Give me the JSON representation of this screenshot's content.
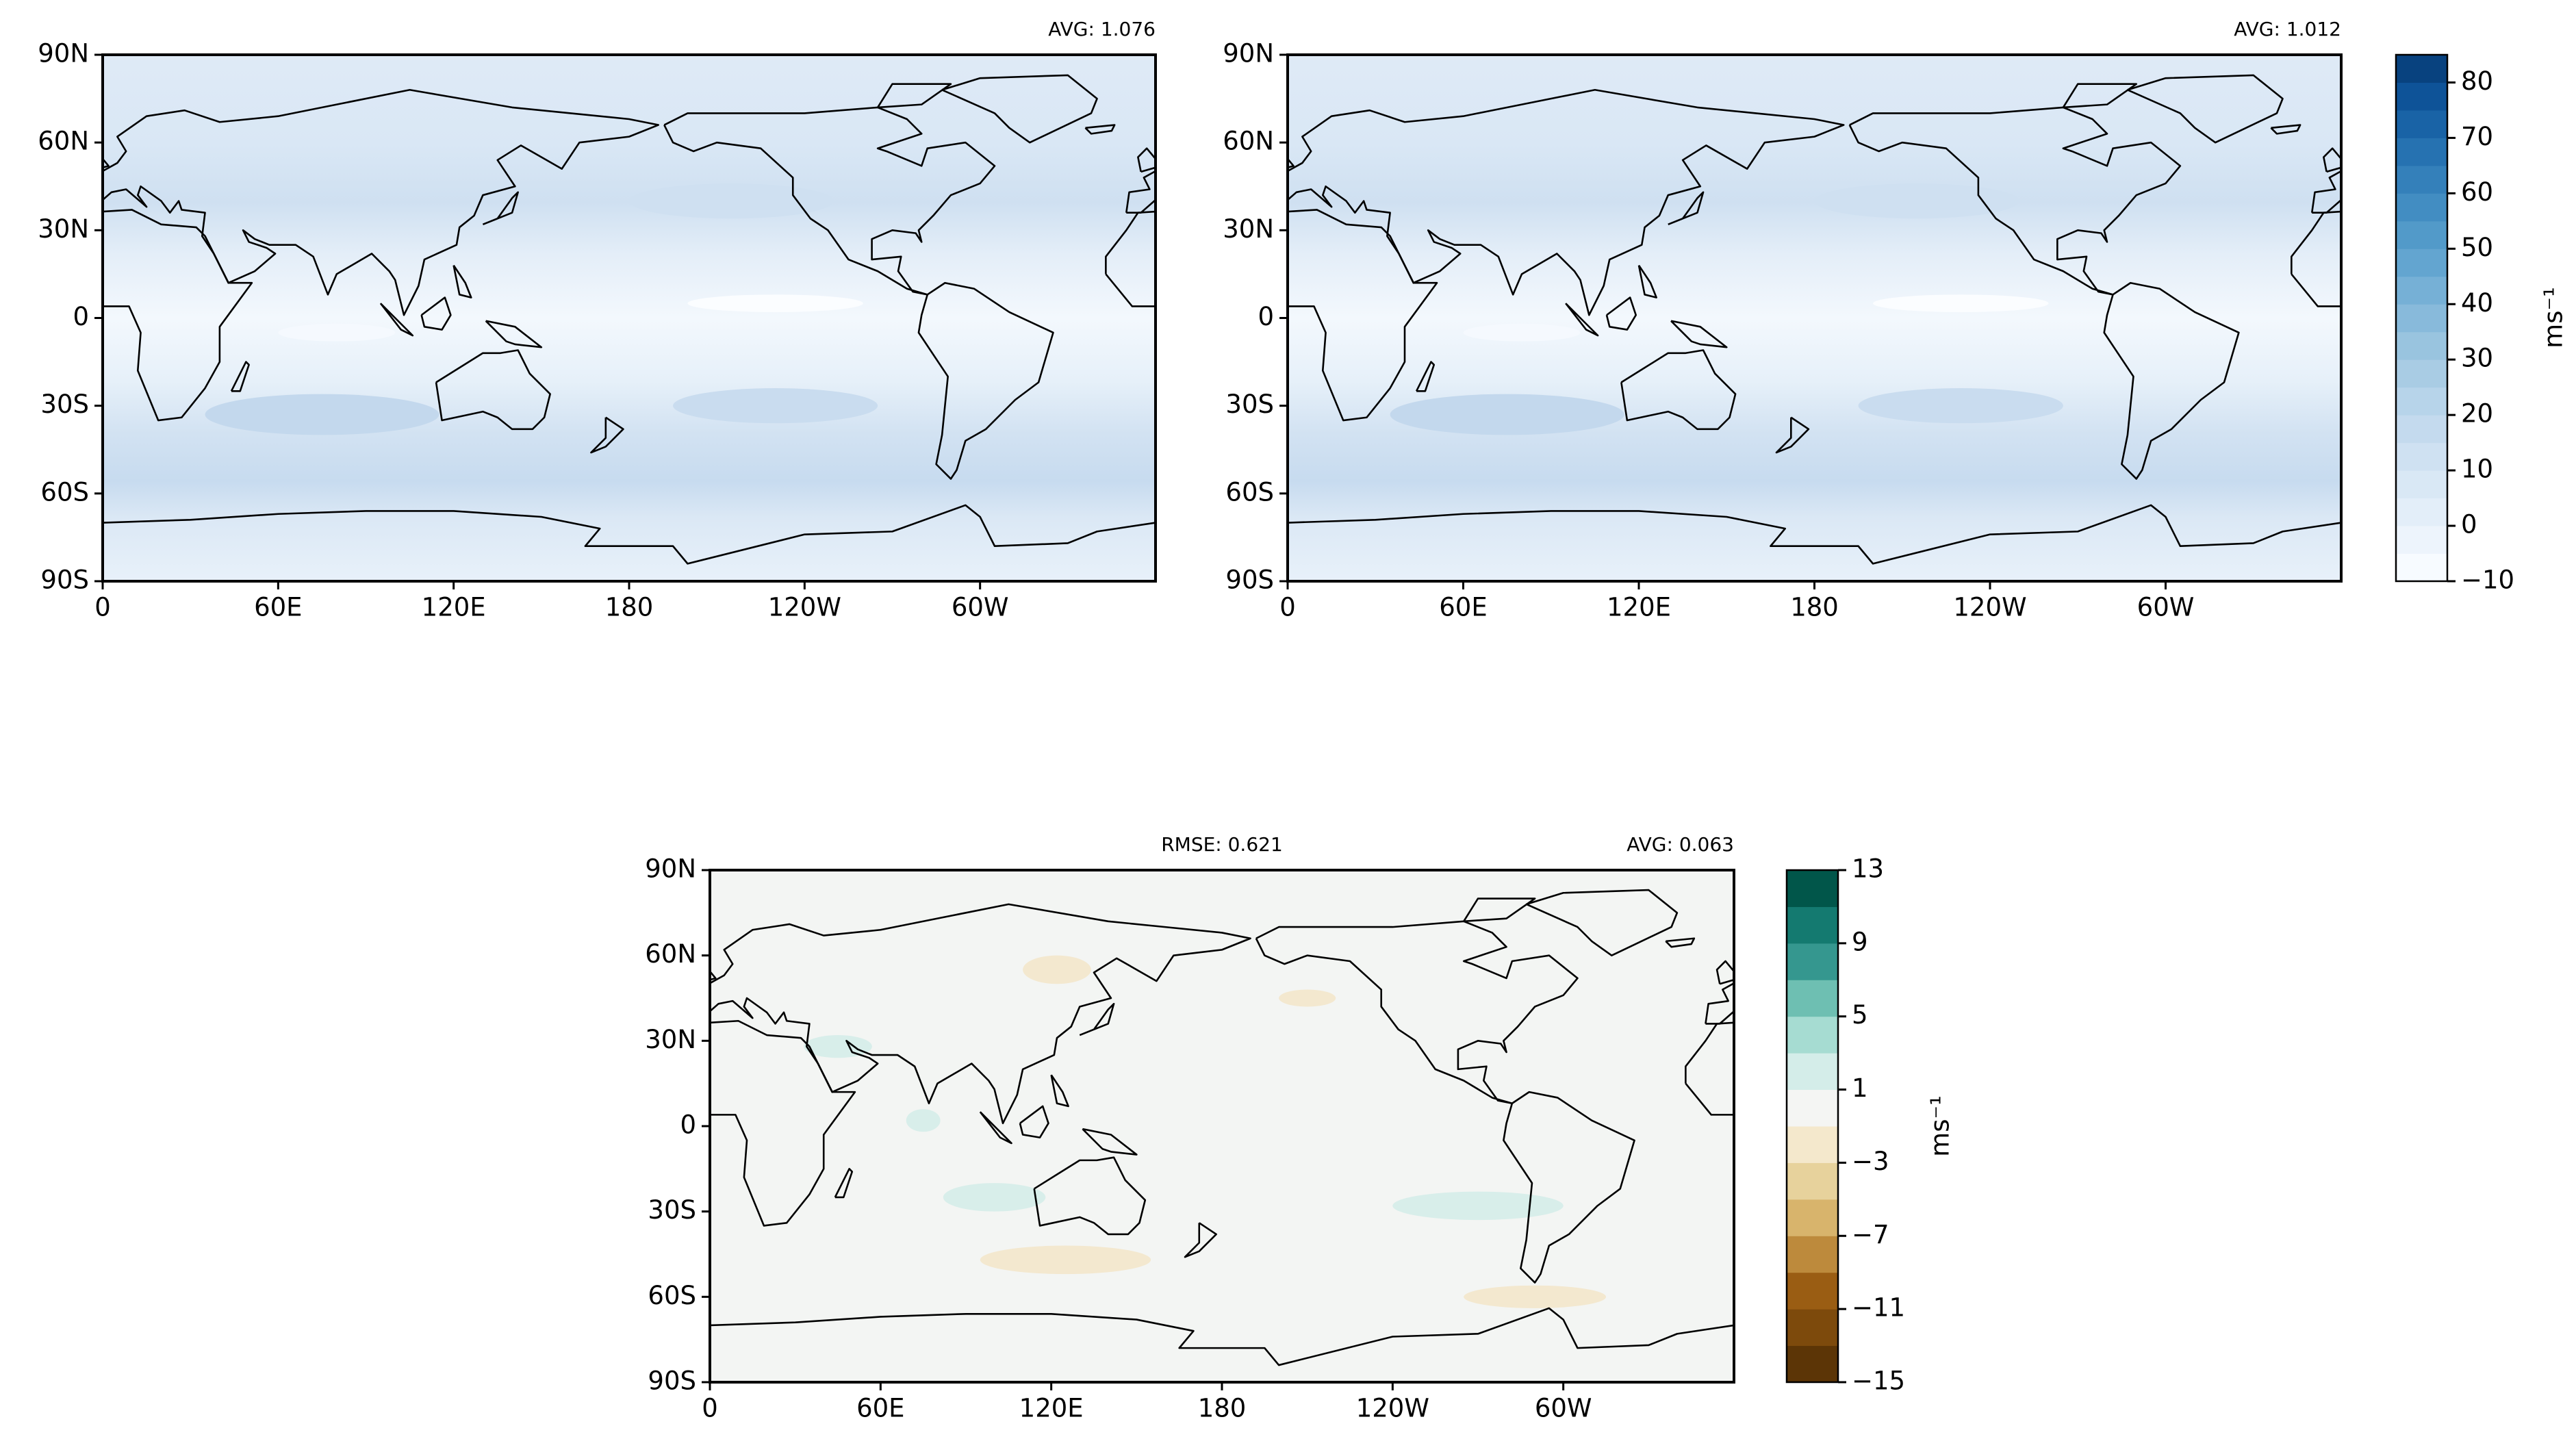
{
  "panels": [
    {
      "annotation_right": "AVG: 1.076"
    },
    {
      "annotation_right": "AVG: 1.012"
    },
    {
      "annotation_left": "RMSE: 0.621",
      "annotation_right": "AVG: 0.063"
    }
  ],
  "lat_range": [
    -90,
    90
  ],
  "lon_range": [
    0,
    360
  ],
  "lat_ticks": [
    {
      "value": 90,
      "label": "90N"
    },
    {
      "value": 60,
      "label": "60N"
    },
    {
      "value": 30,
      "label": "30N"
    },
    0,
    {
      "value": -30,
      "label": "30S"
    },
    {
      "value": -60,
      "label": "60S"
    },
    {
      "value": -90,
      "label": "90S"
    }
  ],
  "lon_ticks": [
    0,
    {
      "value": 60,
      "label": "60E"
    },
    {
      "value": 120,
      "label": "120E"
    },
    180,
    {
      "value": 240,
      "label": "120W"
    },
    {
      "value": 300,
      "label": "60W"
    }
  ],
  "colorbars": [
    {
      "range": [
        -10,
        85
      ],
      "ticks": [
        {
          "value": -10,
          "label": "−10"
        },
        0,
        10,
        20,
        30,
        40,
        50,
        60,
        70,
        80
      ],
      "label": "ms⁻¹",
      "colors": [
        "#f7fbff",
        "#edf4fc",
        "#e3eef9",
        "#d9e8f5",
        "#cfe1f2",
        "#c4daee",
        "#b7d4ea",
        "#a9cce4",
        "#99c4df",
        "#88badb",
        "#76b0d6",
        "#63a5d0",
        "#529ac9",
        "#428dc2",
        "#3480ba",
        "#2672b1",
        "#1963a6",
        "#0e5398",
        "#08427f"
      ]
    },
    {
      "range": [
        -15,
        13
      ],
      "ticks": [
        {
          "value": -15,
          "label": "−15"
        },
        {
          "value": -11,
          "label": "−11"
        },
        {
          "value": -7,
          "label": "−7"
        },
        {
          "value": -3,
          "label": "−3"
        },
        1,
        5,
        9,
        13
      ],
      "label": "ms⁻¹",
      "colors": [
        "#5c3506",
        "#7d4a0c",
        "#9a5d13",
        "#bd8a3c",
        "#d8b46c",
        "#e7d29c",
        "#f4e8cc",
        "#f4f5f3",
        "#d4ede9",
        "#a6dcd2",
        "#6ebfb2",
        "#35978f",
        "#147a70",
        "#01564a"
      ]
    }
  ]
}
